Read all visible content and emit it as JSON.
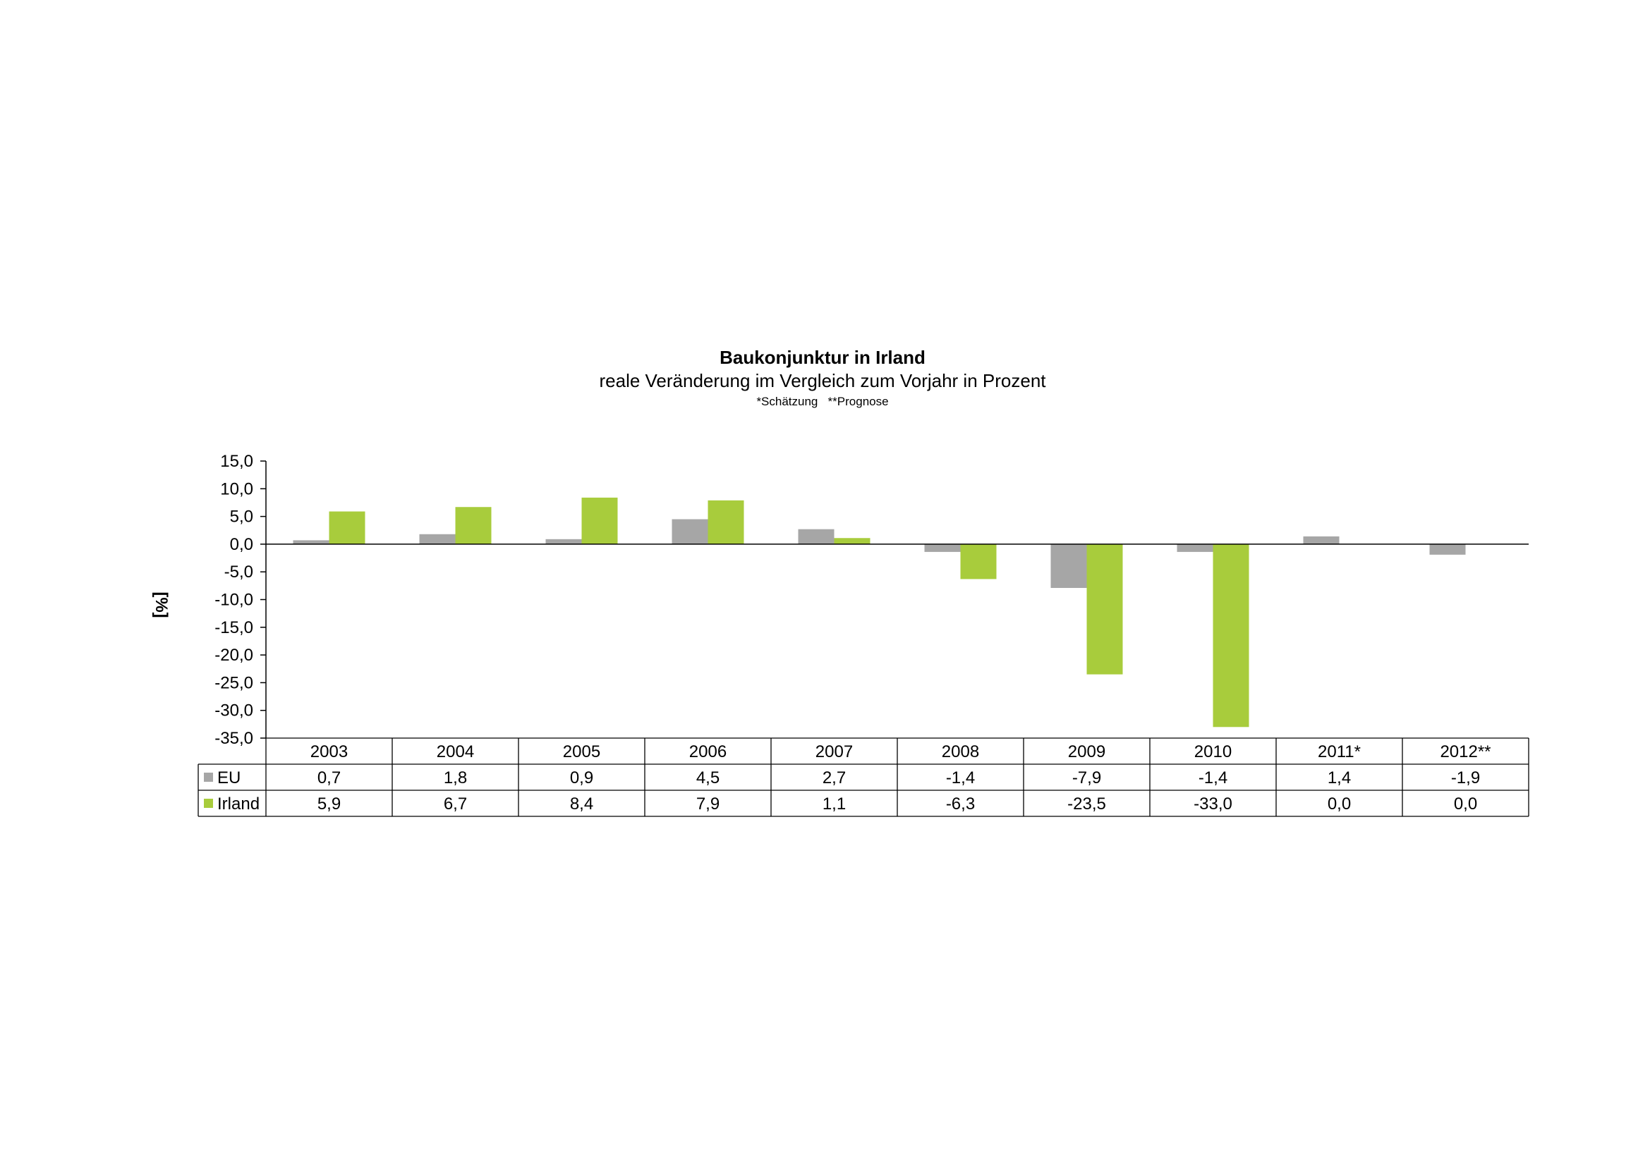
{
  "chart_data": {
    "type": "bar",
    "title": "Baukonjunktur in Irland",
    "subtitle": "reale Veränderung im Vergleich zum Vorjahr in Prozent",
    "note": "*Schätzung   **Prognose",
    "xlabel": "",
    "ylabel": "[%]",
    "ylim": [
      -35,
      15
    ],
    "ytick_step": 5,
    "yticks": [
      "15,0",
      "10,0",
      "5,0",
      "0,0",
      "-5,0",
      "-10,0",
      "-15,0",
      "-20,0",
      "-25,0",
      "-30,0",
      "-35,0"
    ],
    "grid": false,
    "legend": "data-table",
    "categories": [
      "2003",
      "2004",
      "2005",
      "2006",
      "2007",
      "2008",
      "2009",
      "2010",
      "2011*",
      "2012**"
    ],
    "series": [
      {
        "name": "EU",
        "color": "#a6a6a6",
        "values": [
          0.7,
          1.8,
          0.9,
          4.5,
          2.7,
          -1.4,
          -7.9,
          -1.4,
          1.4,
          -1.9
        ],
        "labels": [
          "0,7",
          "1,8",
          "0,9",
          "4,5",
          "2,7",
          "-1,4",
          "-7,9",
          "-1,4",
          "1,4",
          "-1,9"
        ]
      },
      {
        "name": "Irland",
        "color": "#a8cc3c",
        "values": [
          5.9,
          6.7,
          8.4,
          7.9,
          1.1,
          -6.3,
          -23.5,
          -33.0,
          0.0,
          0.0
        ],
        "labels": [
          "5,9",
          "6,7",
          "8,4",
          "7,9",
          "1,1",
          "-6,3",
          "-23,5",
          "-33,0",
          "0,0",
          "0,0"
        ]
      }
    ]
  }
}
